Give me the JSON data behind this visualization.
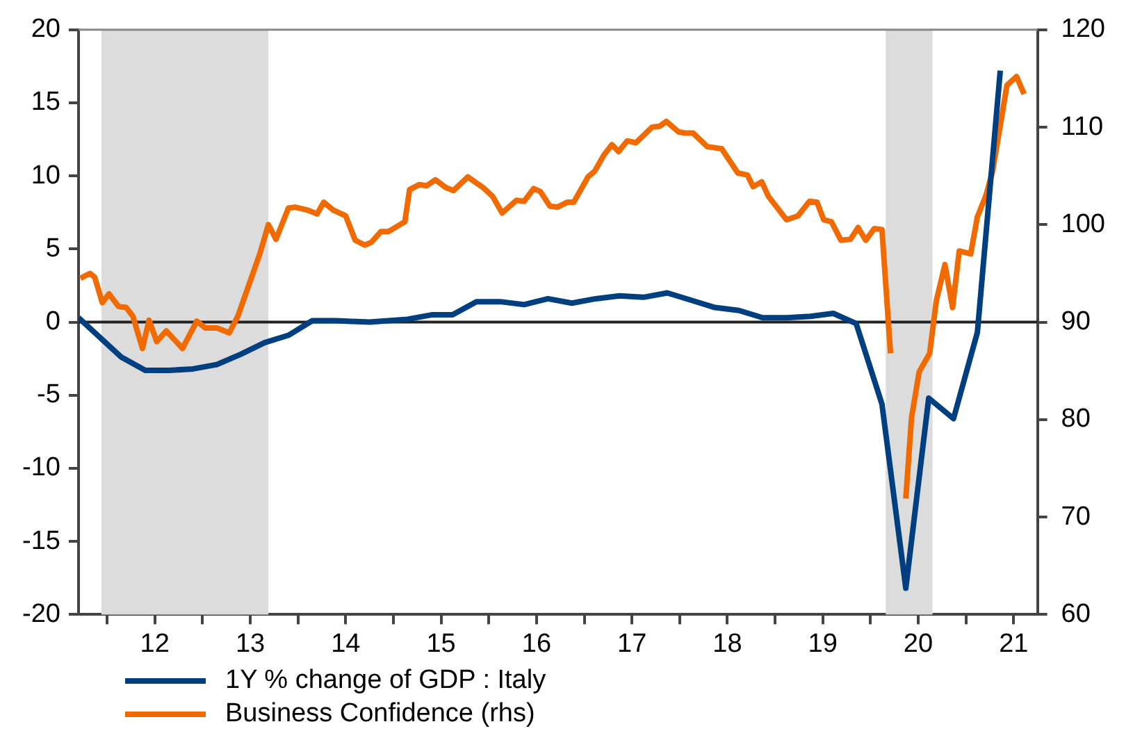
{
  "chart_data": {
    "type": "line",
    "legend": "bottom",
    "grid": false,
    "marker": "none",
    "xlim": [
      11.2,
      21.25
    ],
    "xticks": [
      {
        "value": 11.5,
        "label": null
      },
      12,
      {
        "value": 12.5,
        "label": null
      },
      13,
      {
        "value": 13.5,
        "label": null
      },
      14,
      {
        "value": 14.5,
        "label": null
      },
      15,
      {
        "value": 15.5,
        "label": null
      },
      16,
      {
        "value": 16.5,
        "label": null
      },
      17,
      {
        "value": 17.5,
        "label": null
      },
      18,
      {
        "value": 18.5,
        "label": null
      },
      19,
      {
        "value": 19.5,
        "label": null
      },
      20,
      {
        "value": 20.5,
        "label": null
      },
      21
    ],
    "ylim": [
      -20,
      20
    ],
    "yticks": [
      -20,
      -15,
      -10,
      -5,
      0,
      5,
      10,
      15,
      20
    ],
    "y2lim": [
      60,
      120
    ],
    "y2ticks": [
      60,
      70,
      80,
      90,
      100,
      110,
      120
    ],
    "bands": [
      {
        "axis": "x",
        "from": 11.44,
        "to": 13.19,
        "color": "#dcdcdc"
      },
      {
        "axis": "x",
        "from": 19.66,
        "to": 20.15,
        "color": "#dcdcdc"
      }
    ],
    "ref_lines": [
      {
        "axis": "y",
        "value": 0,
        "color": "#222222",
        "line_style": "solid"
      }
    ],
    "series": [
      {
        "name": "1Y % change of GDP : Italy",
        "color": "#003f7f",
        "x": [
          11.2,
          11.65,
          11.9,
          12.15,
          12.4,
          12.65,
          12.9,
          13.15,
          13.4,
          13.65,
          13.9,
          14.25,
          14.65,
          14.9,
          15.12,
          15.37,
          15.62,
          15.87,
          16.12,
          16.37,
          16.62,
          16.87,
          17.12,
          17.37,
          17.62,
          17.87,
          18.12,
          18.37,
          18.62,
          18.87,
          19.11,
          19.35,
          19.62,
          19.87,
          20.11,
          20.37,
          20.62,
          20.86
        ],
        "values": [
          0.3,
          -2.4,
          -3.3,
          -3.3,
          -3.2,
          -2.9,
          -2.2,
          -1.4,
          -0.9,
          0.1,
          0.1,
          0,
          0.2,
          0.5,
          0.5,
          1.4,
          1.4,
          1.2,
          1.6,
          1.3,
          1.6,
          1.8,
          1.7,
          2.0,
          1.5,
          1.0,
          0.8,
          0.3,
          0.3,
          0.4,
          0.6,
          -0.1,
          -5.6,
          -18.2,
          -5.2,
          -6.6,
          -0.7,
          17.2
        ]
      },
      {
        "name": "Business Confidence (rhs)",
        "color": "#f06a00",
        "axis": "y2",
        "x": [
          11.22,
          11.32,
          11.37,
          11.45,
          11.52,
          11.62,
          11.7,
          11.77,
          11.87,
          11.94,
          12.02,
          12.12,
          12.29,
          12.44,
          12.53,
          12.65,
          12.78,
          12.87,
          13.1,
          13.19,
          13.27,
          13.4,
          13.47,
          13.6,
          13.7,
          13.77,
          13.87,
          14.0,
          14.1,
          14.2,
          14.27,
          14.37,
          14.45,
          14.62,
          14.67,
          14.77,
          14.85,
          14.94,
          15.05,
          15.13,
          15.28,
          15.44,
          15.54,
          15.64,
          15.79,
          15.87,
          15.97,
          16.04,
          16.14,
          16.22,
          16.32,
          16.39,
          16.54,
          16.61,
          16.71,
          16.79,
          16.86,
          16.95,
          17.04,
          17.21,
          17.29,
          17.36,
          17.49,
          17.56,
          17.64,
          17.79,
          17.94,
          18.11,
          18.21,
          18.27,
          18.36,
          18.43,
          18.62,
          18.74,
          18.86,
          18.94,
          19.01,
          19.09,
          19.19,
          19.29,
          19.37,
          19.45,
          19.54,
          19.62,
          19.71,
          19.79,
          19.87,
          19.93,
          20.01,
          20.12,
          20.19,
          20.28,
          20.36,
          20.43,
          20.55,
          20.62,
          20.71,
          20.78,
          20.93,
          21.03,
          21.11
        ],
        "values": [
          94.5,
          95.0,
          94.6,
          92.0,
          92.9,
          91.6,
          91.5,
          90.6,
          87.3,
          90.2,
          88.0,
          89.1,
          87.3,
          90.1,
          89.4,
          89.4,
          88.9,
          90.6,
          97.0,
          100.0,
          98.5,
          101.7,
          101.8,
          101.5,
          101.1,
          102.3,
          101.5,
          100.9,
          98.4,
          97.9,
          98.2,
          99.3,
          99.3,
          100.3,
          103.6,
          104.1,
          104.0,
          104.6,
          103.8,
          103.5,
          104.9,
          103.8,
          102.9,
          101.2,
          102.5,
          102.4,
          103.7,
          103.4,
          101.9,
          101.8,
          102.3,
          102.3,
          104.9,
          105.5,
          107.2,
          108.2,
          107.5,
          108.6,
          108.4,
          110.0,
          110.1,
          110.6,
          109.5,
          109.4,
          109.4,
          108.0,
          107.8,
          105.3,
          105.1,
          103.9,
          104.4,
          102.9,
          100.5,
          100.9,
          102.4,
          102.3,
          100.5,
          100.3,
          98.4,
          98.5,
          99.7,
          98.4,
          99.6,
          99.5,
          86.8,
          null,
          71.9,
          80.2,
          84.9,
          86.8,
          92.2,
          95.9,
          91.5,
          97.3,
          97.0,
          100.8,
          103.0,
          105.5,
          114.3,
          115.2,
          113.4
        ]
      }
    ]
  }
}
